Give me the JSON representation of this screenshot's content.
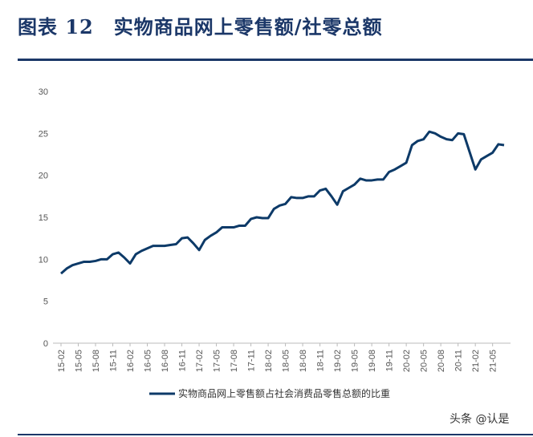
{
  "header": {
    "title": "图表 12　实物商品网上零售额/社零总额"
  },
  "watermark": "头条 @认是",
  "colors": {
    "title": "#1b3768",
    "line": "#0d3a68",
    "rule": "#1b3768"
  },
  "chart_data": {
    "type": "line",
    "title": "",
    "xlabel": "",
    "ylabel": "",
    "ylim": [
      0,
      30
    ],
    "yticks": [
      0,
      5,
      10,
      15,
      20,
      25,
      30
    ],
    "grid": false,
    "legend_position": "bottom",
    "x": [
      "15-02",
      "15-03",
      "15-04",
      "15-05",
      "15-06",
      "15-07",
      "15-08",
      "15-09",
      "15-10",
      "15-11",
      "15-12",
      "16-01",
      "16-02",
      "16-03",
      "16-04",
      "16-05",
      "16-06",
      "16-07",
      "16-08",
      "16-09",
      "16-10",
      "16-11",
      "16-12",
      "17-01",
      "17-02",
      "17-03",
      "17-04",
      "17-05",
      "17-06",
      "17-07",
      "17-08",
      "17-09",
      "17-10",
      "17-11",
      "17-12",
      "18-01",
      "18-02",
      "18-03",
      "18-04",
      "18-05",
      "18-06",
      "18-07",
      "18-08",
      "18-09",
      "18-10",
      "18-11",
      "18-12",
      "19-01",
      "19-02",
      "19-03",
      "19-04",
      "19-05",
      "19-06",
      "19-07",
      "19-08",
      "19-09",
      "19-10",
      "19-11",
      "19-12",
      "20-01",
      "20-02",
      "20-03",
      "20-04",
      "20-05",
      "20-06",
      "20-07",
      "20-08",
      "20-09",
      "20-10",
      "20-11",
      "20-12",
      "21-01",
      "21-02",
      "21-03",
      "21-04",
      "21-05",
      "21-06",
      "21-07"
    ],
    "xtick_labels": [
      "15-02",
      "15-05",
      "15-08",
      "15-11",
      "16-02",
      "16-05",
      "16-08",
      "16-11",
      "17-02",
      "17-05",
      "17-08",
      "17-11",
      "18-02",
      "18-05",
      "18-08",
      "18-11",
      "19-02",
      "19-05",
      "19-08",
      "19-11",
      "20-02",
      "20-05",
      "20-08",
      "20-11",
      "21-02",
      "21-05"
    ],
    "series": [
      {
        "name": "实物商品网上零售额占社会消费品零售总额的比重",
        "color": "#0d3a68",
        "values": [
          8.3,
          8.9,
          9.3,
          9.5,
          9.7,
          9.7,
          9.8,
          10.0,
          10.0,
          10.6,
          10.8,
          10.2,
          9.5,
          10.6,
          11.0,
          11.3,
          11.6,
          11.6,
          11.6,
          11.7,
          11.8,
          12.5,
          12.6,
          11.9,
          11.1,
          12.3,
          12.8,
          13.2,
          13.8,
          13.8,
          13.8,
          14.0,
          14.0,
          14.8,
          15.0,
          14.9,
          14.9,
          16.0,
          16.4,
          16.6,
          17.4,
          17.3,
          17.3,
          17.5,
          17.5,
          18.2,
          18.4,
          17.5,
          16.5,
          18.1,
          18.5,
          18.9,
          19.6,
          19.4,
          19.4,
          19.5,
          19.5,
          20.4,
          20.7,
          21.1,
          21.5,
          23.6,
          24.1,
          24.3,
          25.2,
          25.0,
          24.6,
          24.3,
          24.2,
          25.0,
          24.9,
          22.8,
          20.7,
          21.9,
          22.3,
          22.7,
          23.7,
          23.6
        ]
      }
    ]
  }
}
